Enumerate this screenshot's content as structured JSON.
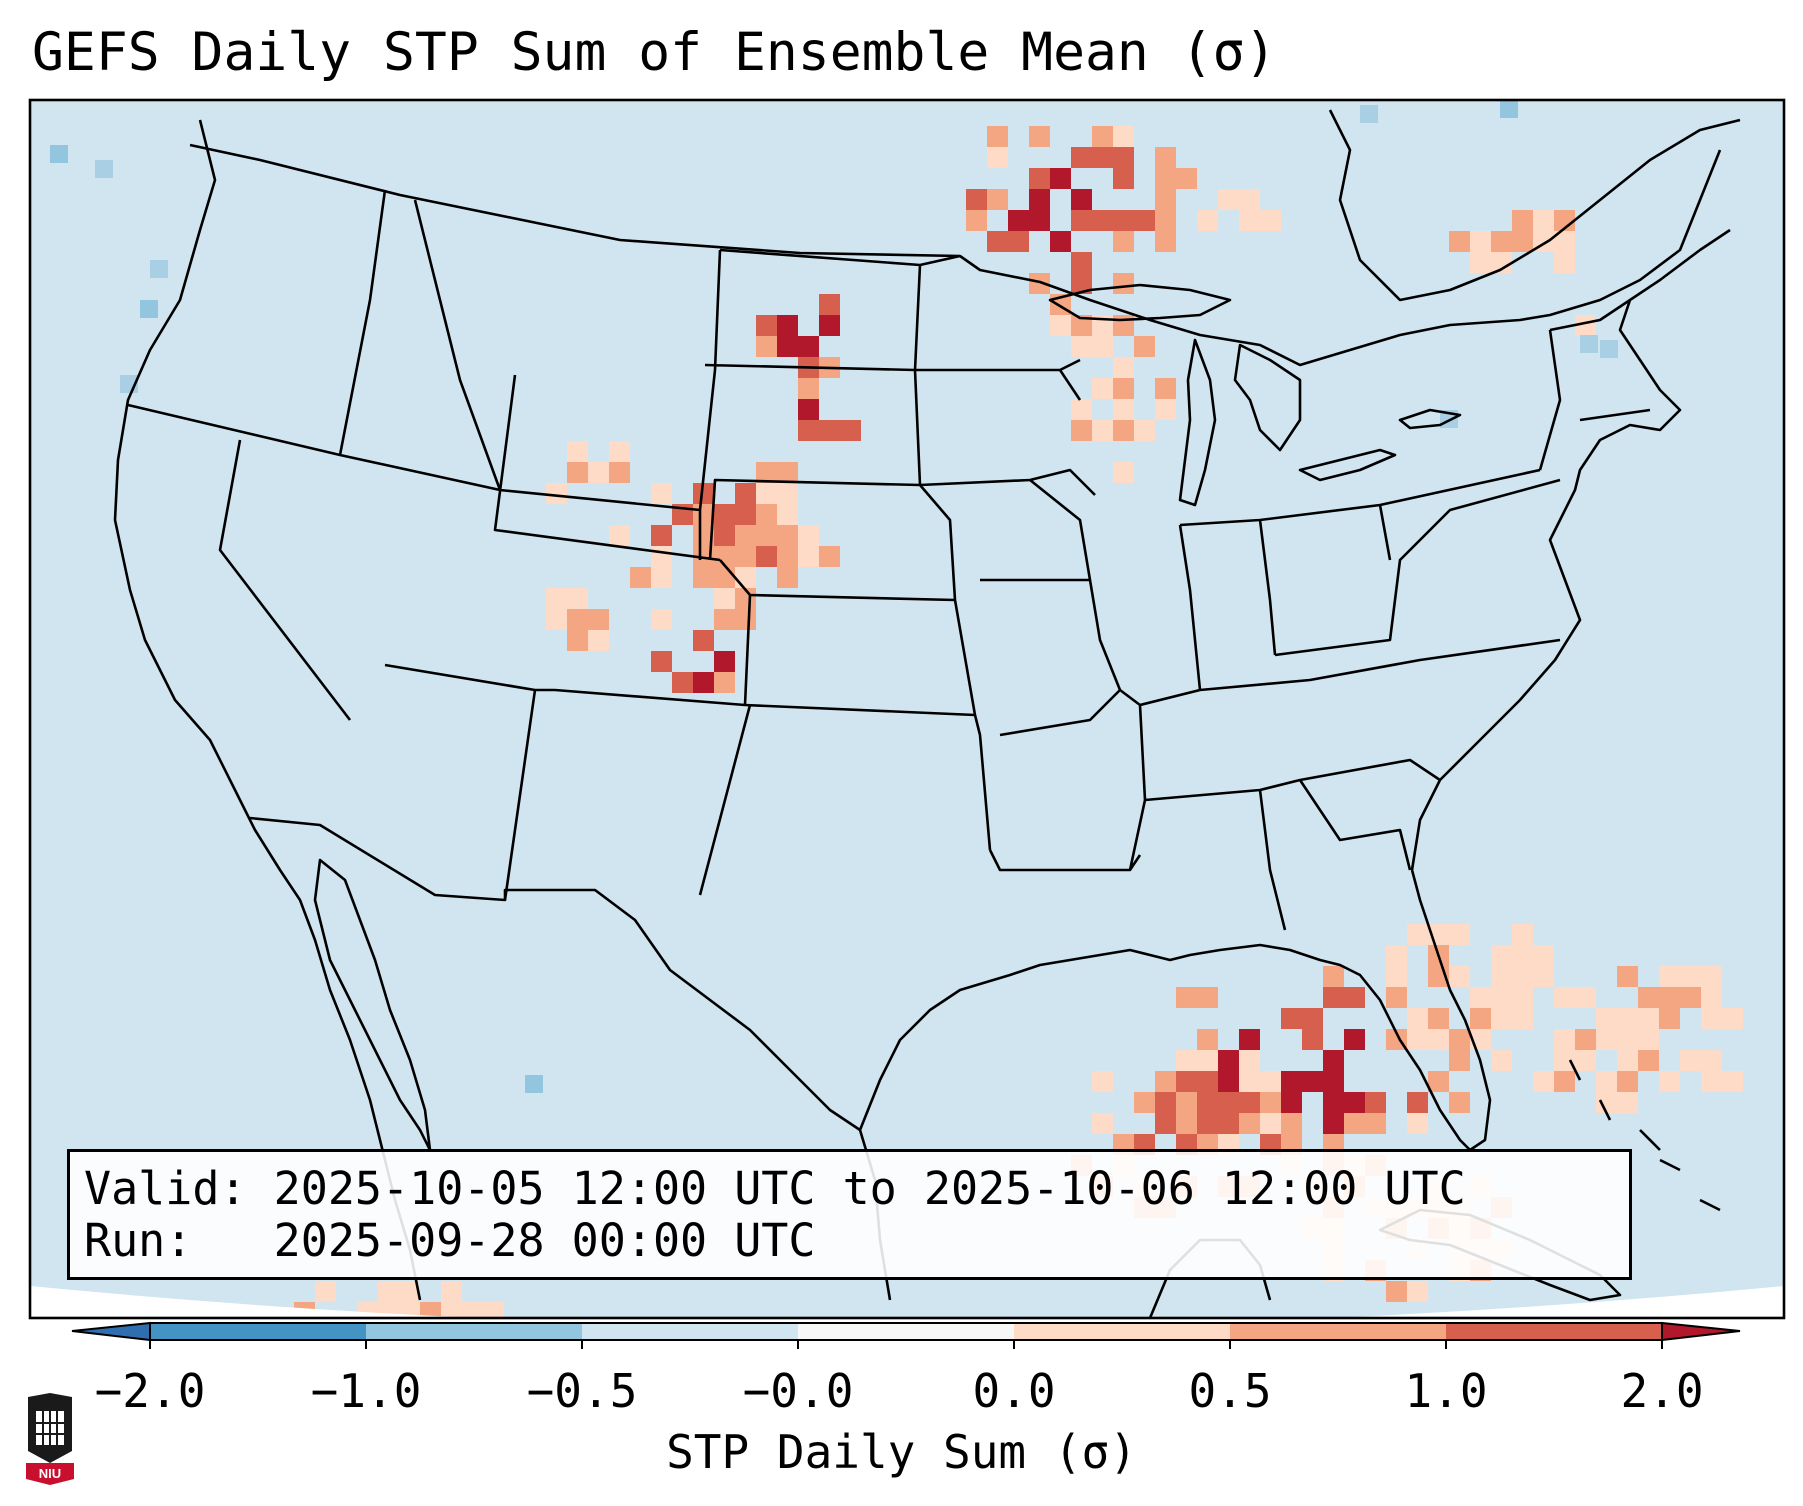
{
  "title": "GEFS Daily STP Sum of Ensemble Mean (σ)",
  "valid_line": "Valid: 2025-10-05 12:00 UTC to 2025-10-06 12:00 UTC",
  "run_line": "Run:   2025-09-28 00:00 UTC",
  "colorbar": {
    "label": "STP Daily Sum (σ)",
    "ticks": [
      "−2.0",
      "−1.0",
      "−0.5",
      "−0.0",
      "0.0",
      "0.5",
      "1.0",
      "2.0"
    ],
    "bins": [
      {
        "range": "< -2.0",
        "color": "#2f6fb0"
      },
      {
        "range": "-2.0 to -1.0",
        "color": "#4393c3"
      },
      {
        "range": "-1.0 to -0.5",
        "color": "#92c5de"
      },
      {
        "range": "-0.5 to -0.0",
        "color": "#d1e5f0"
      },
      {
        "range": "-0.0 to 0.0",
        "color": "#f7f7f7"
      },
      {
        "range": "0.0 to 0.5",
        "color": "#fddbc7"
      },
      {
        "range": "0.5 to 1.0",
        "color": "#f4a582"
      },
      {
        "range": "1.0 to 2.0",
        "color": "#d6604d"
      },
      {
        "range": "> 2.0",
        "color": "#b2182b"
      }
    ]
  },
  "map": {
    "background_color": "#d1e5f0",
    "region": "Contiguous United States, southern Canada, northern Mexico, Gulf of Mexico",
    "features": [
      "state boundaries",
      "country boundaries",
      "coastlines"
    ]
  },
  "chart_data": {
    "type": "heatmap",
    "title": "GEFS Daily STP Sum of Ensemble Mean (σ)",
    "units": "σ",
    "bin_edges": [
      -2.0,
      -1.0,
      -0.5,
      0.0,
      0.5,
      1.0,
      2.0
    ],
    "anomaly_regions": [
      {
        "area": "Southern Manitoba / NW Ontario",
        "value_range": [
          0.5,
          2.0
        ]
      },
      {
        "area": "North Dakota / South Dakota",
        "value_range": [
          0.5,
          2.0
        ]
      },
      {
        "area": "Eastern Colorado",
        "value_range": [
          0.5,
          2.0
        ]
      },
      {
        "area": "Western Kansas / Nebraska",
        "value_range": [
          0.0,
          1.0
        ]
      },
      {
        "area": "Eastern Gulf of Mexico / Florida Keys",
        "value_range": [
          0.5,
          2.0
        ]
      },
      {
        "area": "Western Atlantic / Bahamas",
        "value_range": [
          0.0,
          1.0
        ]
      }
    ]
  },
  "logo": {
    "text": "NIU"
  }
}
